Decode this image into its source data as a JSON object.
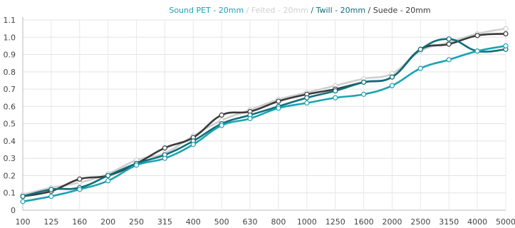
{
  "chart_data": {
    "type": "line",
    "title": "",
    "xlabel": "",
    "ylabel": "",
    "categories": [
      "100",
      "125",
      "160",
      "200",
      "250",
      "315",
      "400",
      "500",
      "630",
      "800",
      "1000",
      "1250",
      "1600",
      "2000",
      "2500",
      "3150",
      "4000",
      "5000"
    ],
    "ylim": [
      0,
      1.1
    ],
    "yticks": [
      "0",
      "0.1",
      "0.2",
      "0.3",
      "0.4",
      "0.5",
      "0.6",
      "0.7",
      "0.8",
      "0.9",
      "1.0",
      "1.1"
    ],
    "grid": true,
    "legend_position": "top-center",
    "legend_separator": " / ",
    "series": [
      {
        "name": "Sound PET - 20mm",
        "color": "#1aa3b3",
        "values": [
          0.05,
          0.08,
          0.12,
          0.17,
          0.26,
          0.3,
          0.38,
          0.49,
          0.53,
          0.59,
          0.62,
          0.65,
          0.67,
          0.72,
          0.82,
          0.87,
          0.92,
          0.95
        ]
      },
      {
        "name": "Felted - 20mm",
        "color": "#cfcfcf",
        "values": [
          0.09,
          0.13,
          0.16,
          0.21,
          0.29,
          0.33,
          0.43,
          0.52,
          0.58,
          0.64,
          0.68,
          0.72,
          0.76,
          0.79,
          0.92,
          0.97,
          1.02,
          1.05
        ]
      },
      {
        "name": "Twill - 20mm",
        "color": "#0f6f7a",
        "values": [
          0.08,
          0.12,
          0.13,
          0.2,
          0.27,
          0.32,
          0.4,
          0.5,
          0.55,
          0.6,
          0.65,
          0.69,
          0.74,
          0.77,
          0.93,
          0.99,
          0.92,
          0.93
        ]
      },
      {
        "name": "Suede - 20mm",
        "color": "#3a3a3a",
        "values": [
          0.08,
          0.11,
          0.18,
          0.2,
          0.27,
          0.36,
          0.42,
          0.55,
          0.57,
          0.63,
          0.67,
          0.7,
          0.74,
          0.77,
          0.93,
          0.96,
          1.01,
          1.02
        ]
      }
    ]
  }
}
